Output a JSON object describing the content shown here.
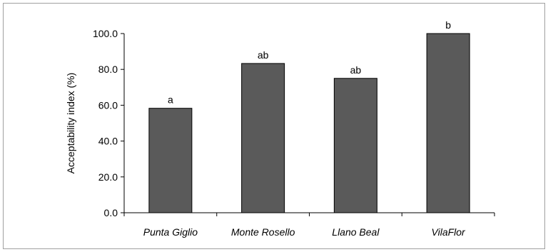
{
  "chart_data": {
    "type": "bar",
    "title": "",
    "xlabel": "",
    "ylabel": "Acceptability index (%)",
    "ylim": [
      0,
      100
    ],
    "yticks": [
      "0.0",
      "20.0",
      "40.0",
      "60.0",
      "80.0",
      "100.0"
    ],
    "yticks_values": [
      0,
      20,
      40,
      60,
      80,
      100
    ],
    "categories": [
      "Punta Giglio",
      "Monte Rosello",
      "Llano Beal",
      "VilaFlor"
    ],
    "values": [
      58.3,
      83.3,
      75.0,
      100.0
    ],
    "data_labels": [
      "a",
      "ab",
      "ab",
      "b"
    ],
    "bar_color": "#5a5a5a",
    "grid": false,
    "legend": "none"
  }
}
